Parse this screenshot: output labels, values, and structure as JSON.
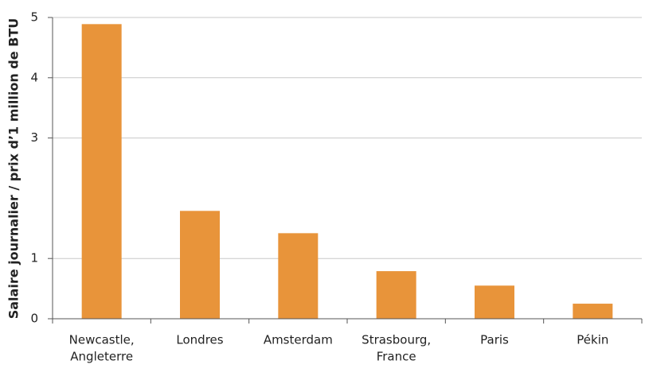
{
  "chart_data": {
    "type": "bar",
    "y_label": "Salaire journalier / prix d’1 million de BTU",
    "categories": [
      [
        "Newcastle,",
        "Angleterre"
      ],
      [
        "Londres"
      ],
      [
        "Amsterdam"
      ],
      [
        "Strasbourg,",
        "France"
      ],
      [
        "Paris"
      ],
      [
        "Pékin"
      ]
    ],
    "values": [
      4.89,
      1.79,
      1.42,
      0.79,
      0.55,
      0.25
    ],
    "color": "#e8943a",
    "ylim": [
      0,
      5
    ],
    "yticks": [
      0,
      1,
      3,
      4,
      5
    ],
    "grid": true
  }
}
